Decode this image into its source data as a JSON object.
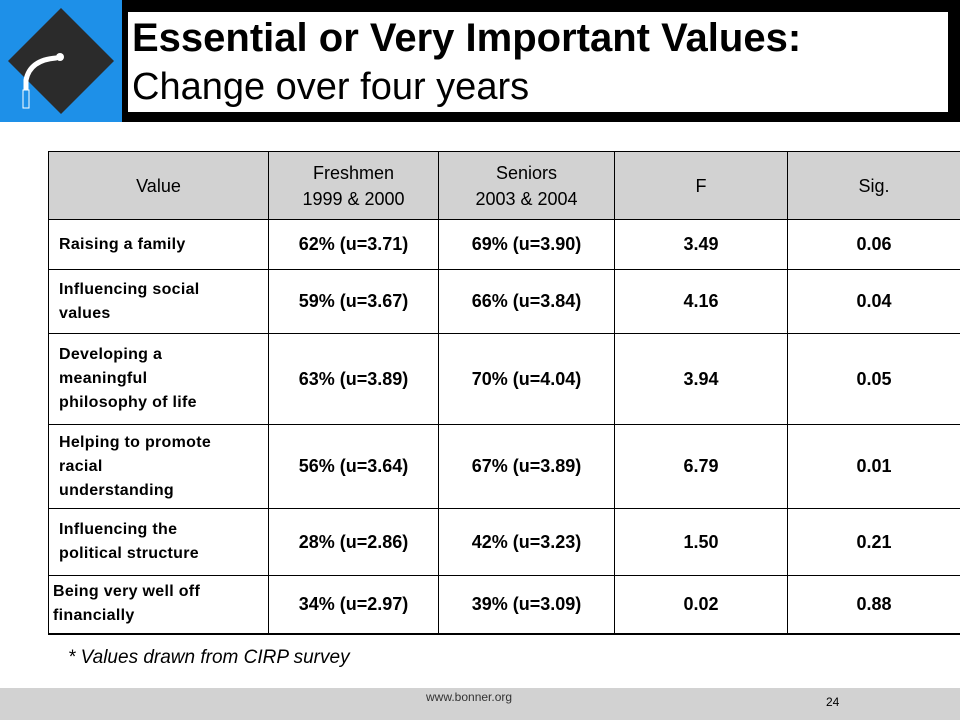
{
  "header": {
    "title_bold": "Essential or Very Important Values:",
    "title_sub": "Change over four years",
    "accent_color": "#1e90e8",
    "logo_icon": "bonner-logo-icon"
  },
  "table": {
    "headers": [
      {
        "line1": "Value",
        "line2": ""
      },
      {
        "line1": "Freshmen",
        "line2": "1999 & 2000"
      },
      {
        "line1": "Seniors",
        "line2": "2003 & 2004"
      },
      {
        "line1": "F",
        "line2": ""
      },
      {
        "line1": "Sig.",
        "line2": ""
      }
    ],
    "rows": [
      {
        "value": [
          "Raising a family"
        ],
        "freshmen": "62% (u=3.71)",
        "seniors": "69% (u=3.90)",
        "f": "3.49",
        "sig": "0.06"
      },
      {
        "value": [
          "Influencing social",
          "values"
        ],
        "freshmen": "59% (u=3.67)",
        "seniors": "66% (u=3.84)",
        "f": "4.16",
        "sig": "0.04"
      },
      {
        "value": [
          "Developing a",
          "meaningful",
          "philosophy of life"
        ],
        "freshmen": "63% (u=3.89)",
        "seniors": "70% (u=4.04)",
        "f": "3.94",
        "sig": "0.05"
      },
      {
        "value": [
          "Helping to promote",
          "racial",
          "understanding"
        ],
        "freshmen": "56% (u=3.64)",
        "seniors": "67% (u=3.89)",
        "f": "6.79",
        "sig": "0.01"
      },
      {
        "value": [
          "Influencing the",
          "political structure"
        ],
        "freshmen": "28% (u=2.86)",
        "seniors": "42% (u=3.23)",
        "f": "1.50",
        "sig": "0.21"
      },
      {
        "value": [
          "Being very well off",
          "financially"
        ],
        "freshmen": "34% (u=2.97)",
        "seniors": "39% (u=3.09)",
        "f": "0.02",
        "sig": "0.88"
      }
    ]
  },
  "footnote": "* Values drawn from CIRP survey",
  "footer": {
    "url": "www.bonner.org",
    "page": "24"
  }
}
